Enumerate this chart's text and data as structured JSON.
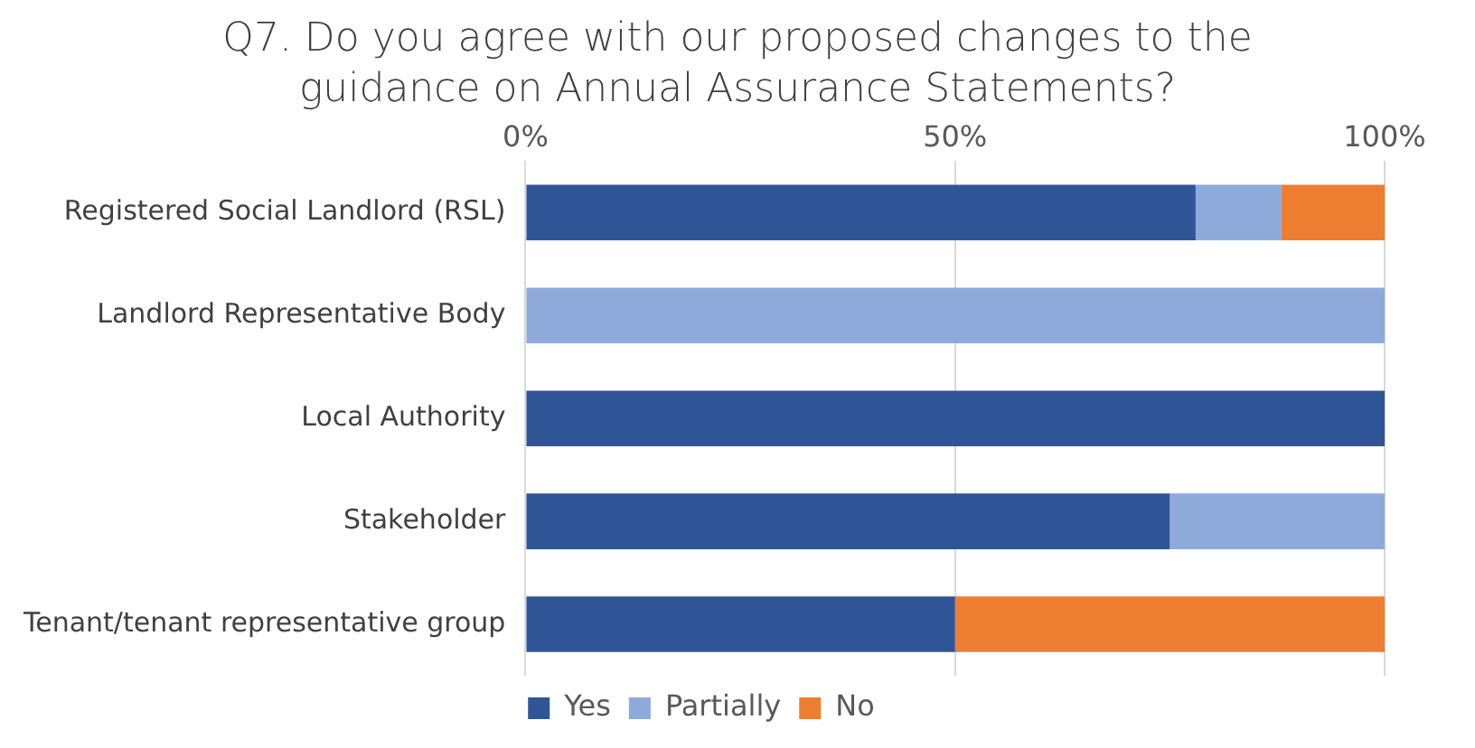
{
  "chart_data": {
    "type": "bar",
    "orientation": "horizontal",
    "stacked": true,
    "title": "Q7. Do you agree with our proposed changes to the guidance on Annual Assurance Statements?",
    "categories": [
      "Registered Social Landlord (RSL)",
      "Landlord Representative Body",
      "Local Authority",
      "Stakeholder",
      "Tenant/tenant representative group"
    ],
    "series": [
      {
        "name": "Yes",
        "color": "#2f5597",
        "values": [
          78,
          0,
          100,
          75,
          50
        ]
      },
      {
        "name": "Partially",
        "color": "#8eaadb",
        "values": [
          10,
          100,
          0,
          25,
          0
        ]
      },
      {
        "name": "No",
        "color": "#ed7d31",
        "values": [
          12,
          0,
          0,
          0,
          50
        ]
      }
    ],
    "xlim": [
      0,
      100
    ],
    "xticks": [
      {
        "value": 0,
        "label": "0%"
      },
      {
        "value": 50,
        "label": "50%"
      },
      {
        "value": 100,
        "label": "100%"
      }
    ],
    "grid": "x",
    "legend": "bottom"
  }
}
